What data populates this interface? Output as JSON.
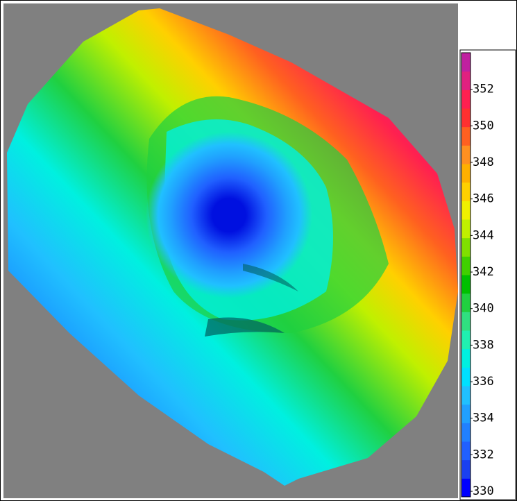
{
  "colorbar": {
    "ticks": [
      330,
      332,
      334,
      336,
      338,
      340,
      342,
      344,
      346,
      348,
      350,
      352
    ],
    "range": [
      329.7,
      354
    ],
    "colors": [
      "#0000ff",
      "#1a40f0",
      "#2060ff",
      "#2080ff",
      "#20a0ff",
      "#20c0ff",
      "#00e0ff",
      "#00f0e0",
      "#20f0b0",
      "#30e080",
      "#20d040",
      "#00c000",
      "#40d000",
      "#80e000",
      "#c0f000",
      "#f0f000",
      "#ffd000",
      "#ffb000",
      "#ff9020",
      "#ff6020",
      "#ff3030",
      "#ff2050",
      "#e02080",
      "#c020a0"
    ]
  }
}
